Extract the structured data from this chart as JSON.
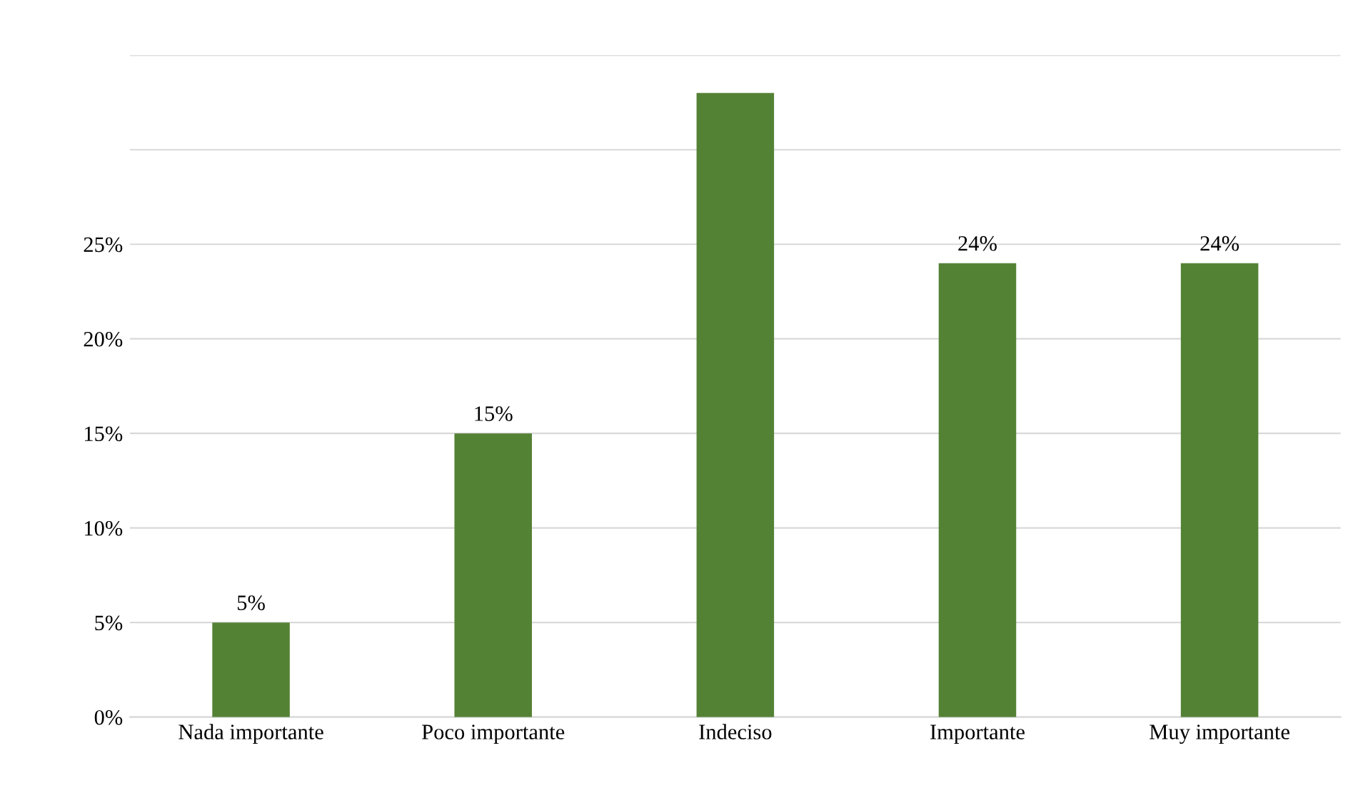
{
  "chart_data": {
    "type": "bar",
    "categories": [
      "Nada importante",
      "Poco importante",
      "Indeciso",
      "Importante",
      "Muy importante"
    ],
    "values": [
      5,
      15,
      33,
      24,
      24
    ],
    "value_labels": [
      "5%",
      "15%",
      null,
      "24%",
      "24%"
    ],
    "color": "#548235",
    "ylim": [
      0,
      35
    ],
    "yticks": [
      {
        "value": 0,
        "label": "0%"
      },
      {
        "value": 5,
        "label": "5%"
      },
      {
        "value": 10,
        "label": "10%"
      },
      {
        "value": 15,
        "label": "15%"
      },
      {
        "value": 20,
        "label": "20%"
      },
      {
        "value": 25,
        "label": "25%"
      },
      {
        "value": 30,
        "label": null
      },
      {
        "value": 35,
        "label": null
      }
    ],
    "grid": "y",
    "legend": false
  }
}
